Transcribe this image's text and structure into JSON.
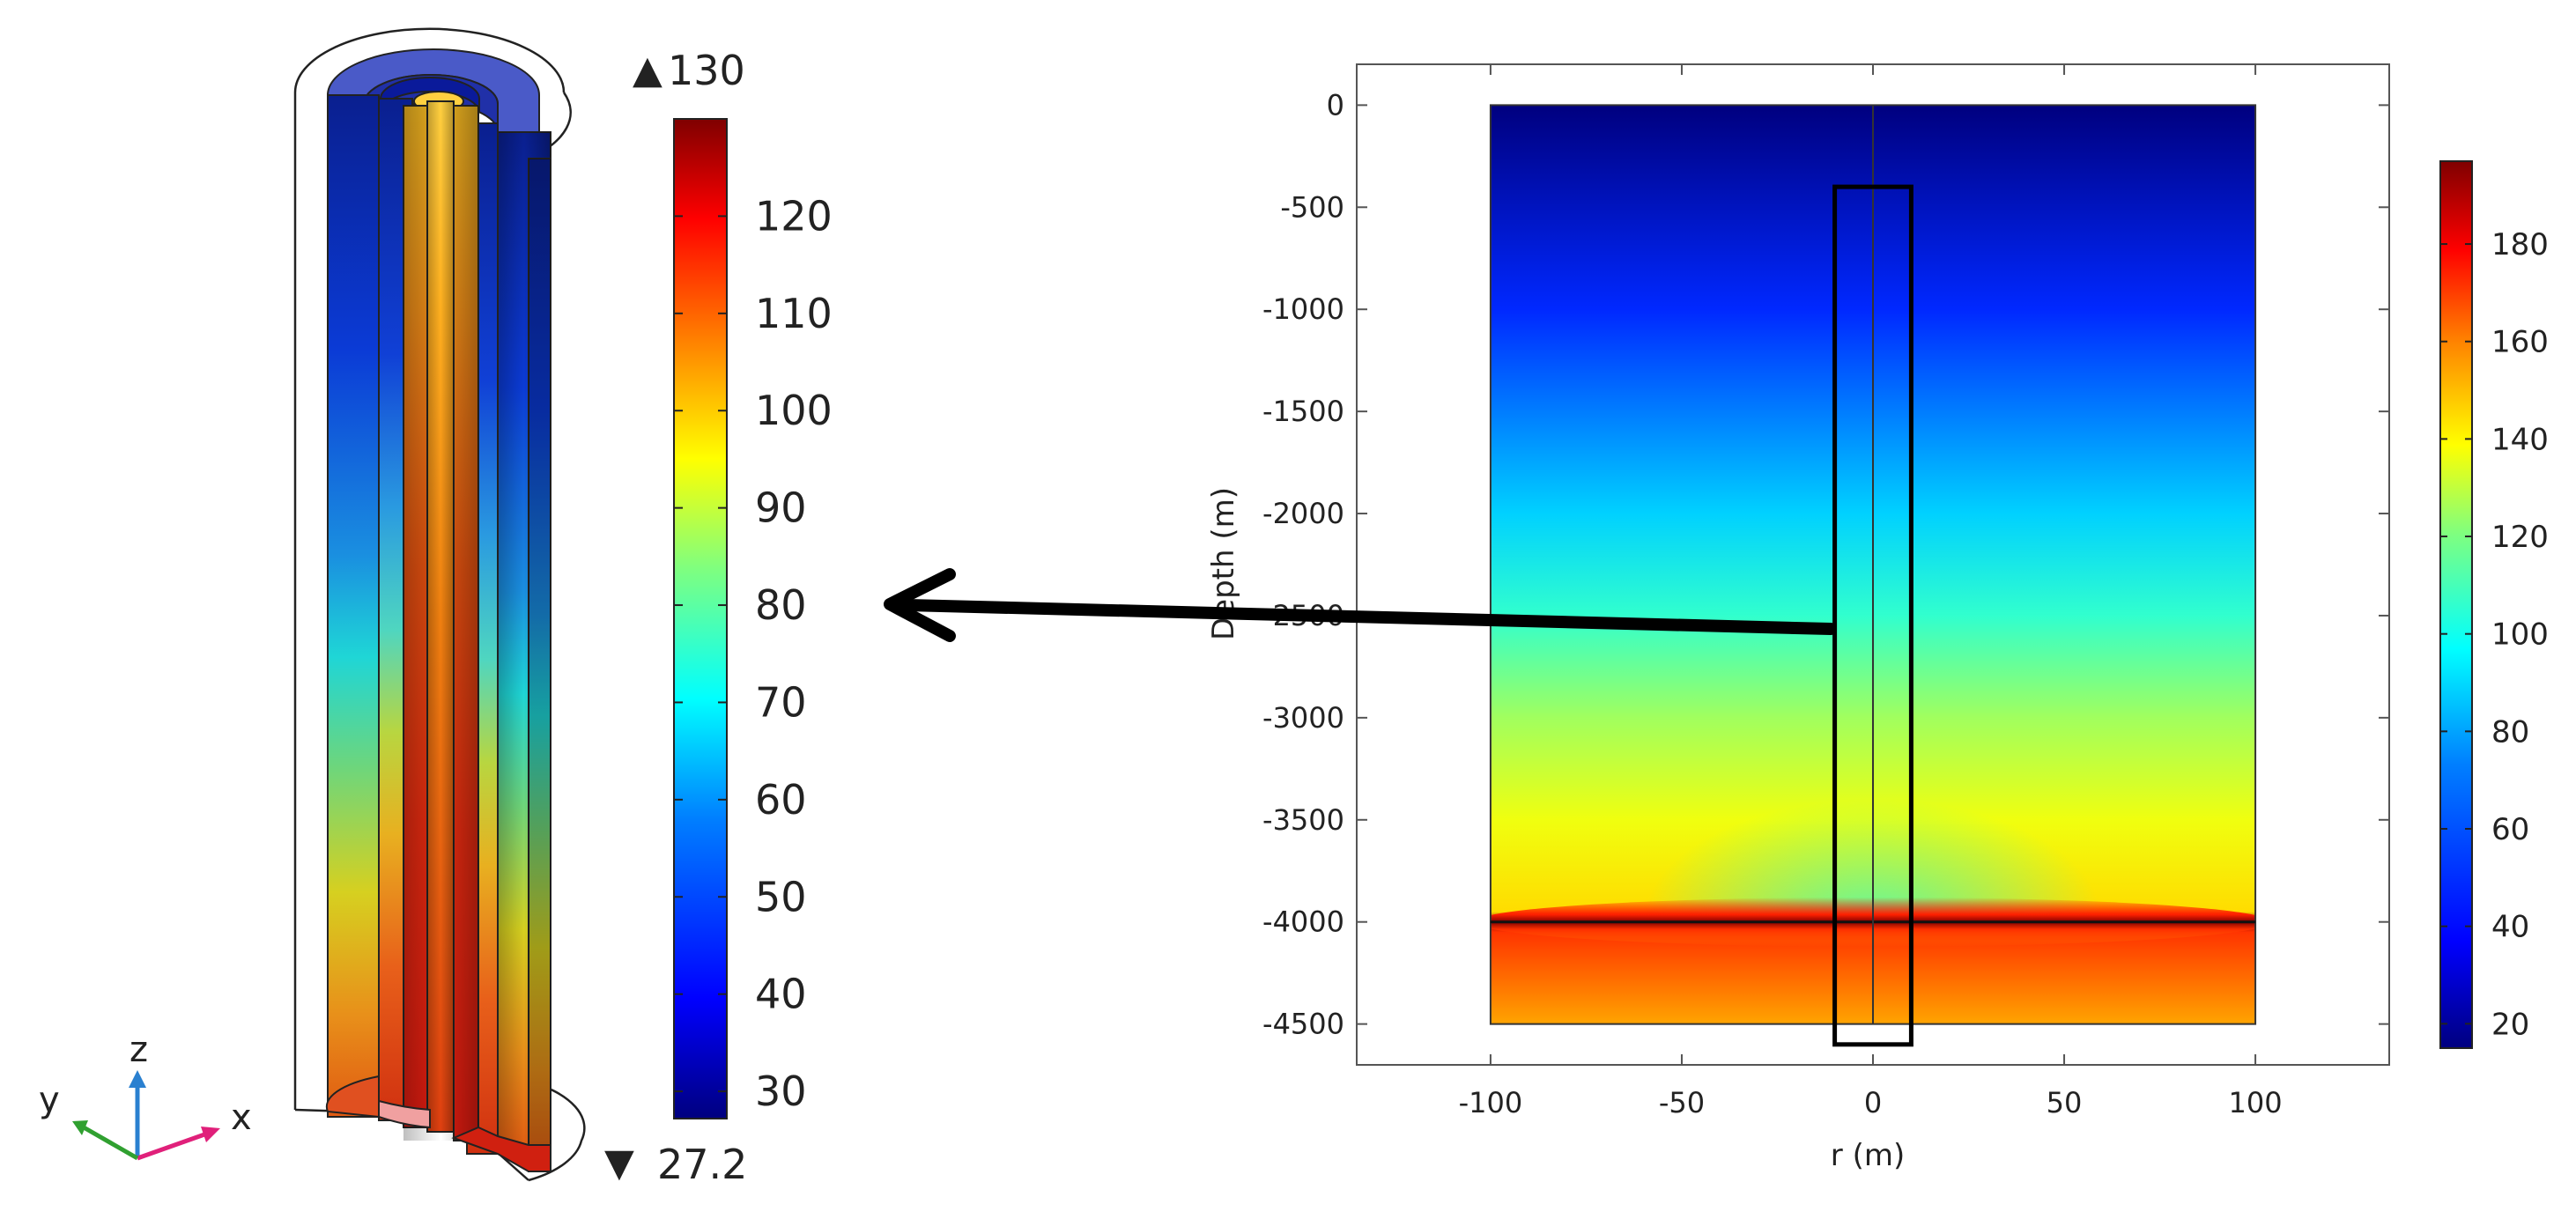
{
  "colors": {
    "jet": [
      "#00007f",
      "#0000ff",
      "#007fff",
      "#00ffff",
      "#7fff7f",
      "#ffff00",
      "#ff7f00",
      "#ff0000",
      "#7f0000"
    ],
    "arrow": "#000000",
    "frame": "#555555"
  },
  "left_panel": {
    "colorbar": {
      "min_label": "27.2",
      "max_label": "130",
      "min_marker": "▼",
      "max_marker": "▲",
      "min": 27.2,
      "max": 130,
      "ticks": [
        30,
        40,
        50,
        60,
        70,
        80,
        90,
        100,
        110,
        120
      ]
    },
    "axis_triad": {
      "x": "x",
      "y": "y",
      "z": "z"
    }
  },
  "chart_data": [
    {
      "type": "heatmap",
      "title": "",
      "xlabel": "r (m)",
      "ylabel": "Depth (m)",
      "xlim": [
        -135,
        135
      ],
      "ylim": [
        -4700,
        200
      ],
      "domain_x": [
        -100,
        100
      ],
      "domain_y": [
        -4500,
        0
      ],
      "xticks": [
        -100,
        -50,
        0,
        50,
        100
      ],
      "yticks": [
        0,
        -500,
        -1000,
        -1500,
        -2000,
        -2500,
        -3000,
        -3500,
        -4000,
        -4500
      ],
      "colorbar": {
        "min": 15,
        "max": 197,
        "ticks": [
          20,
          40,
          60,
          80,
          100,
          120,
          140,
          160,
          180
        ]
      },
      "temperature_profile": [
        {
          "depth": 0,
          "value": 15
        },
        {
          "depth": -1000,
          "value": 45
        },
        {
          "depth": -2000,
          "value": 75
        },
        {
          "depth": -2500,
          "value": 92
        },
        {
          "depth": -3000,
          "value": 112
        },
        {
          "depth": -3500,
          "value": 126
        },
        {
          "depth": -3950,
          "value": 135
        },
        {
          "depth": -4000,
          "value": 197
        },
        {
          "depth": -4050,
          "value": 165
        },
        {
          "depth": -4500,
          "value": 145
        }
      ],
      "interface_depth": -4000,
      "highlight_box": {
        "r": [
          -10,
          10
        ],
        "depth": [
          -400,
          -4600
        ]
      },
      "wellbore_r": 0
    }
  ]
}
